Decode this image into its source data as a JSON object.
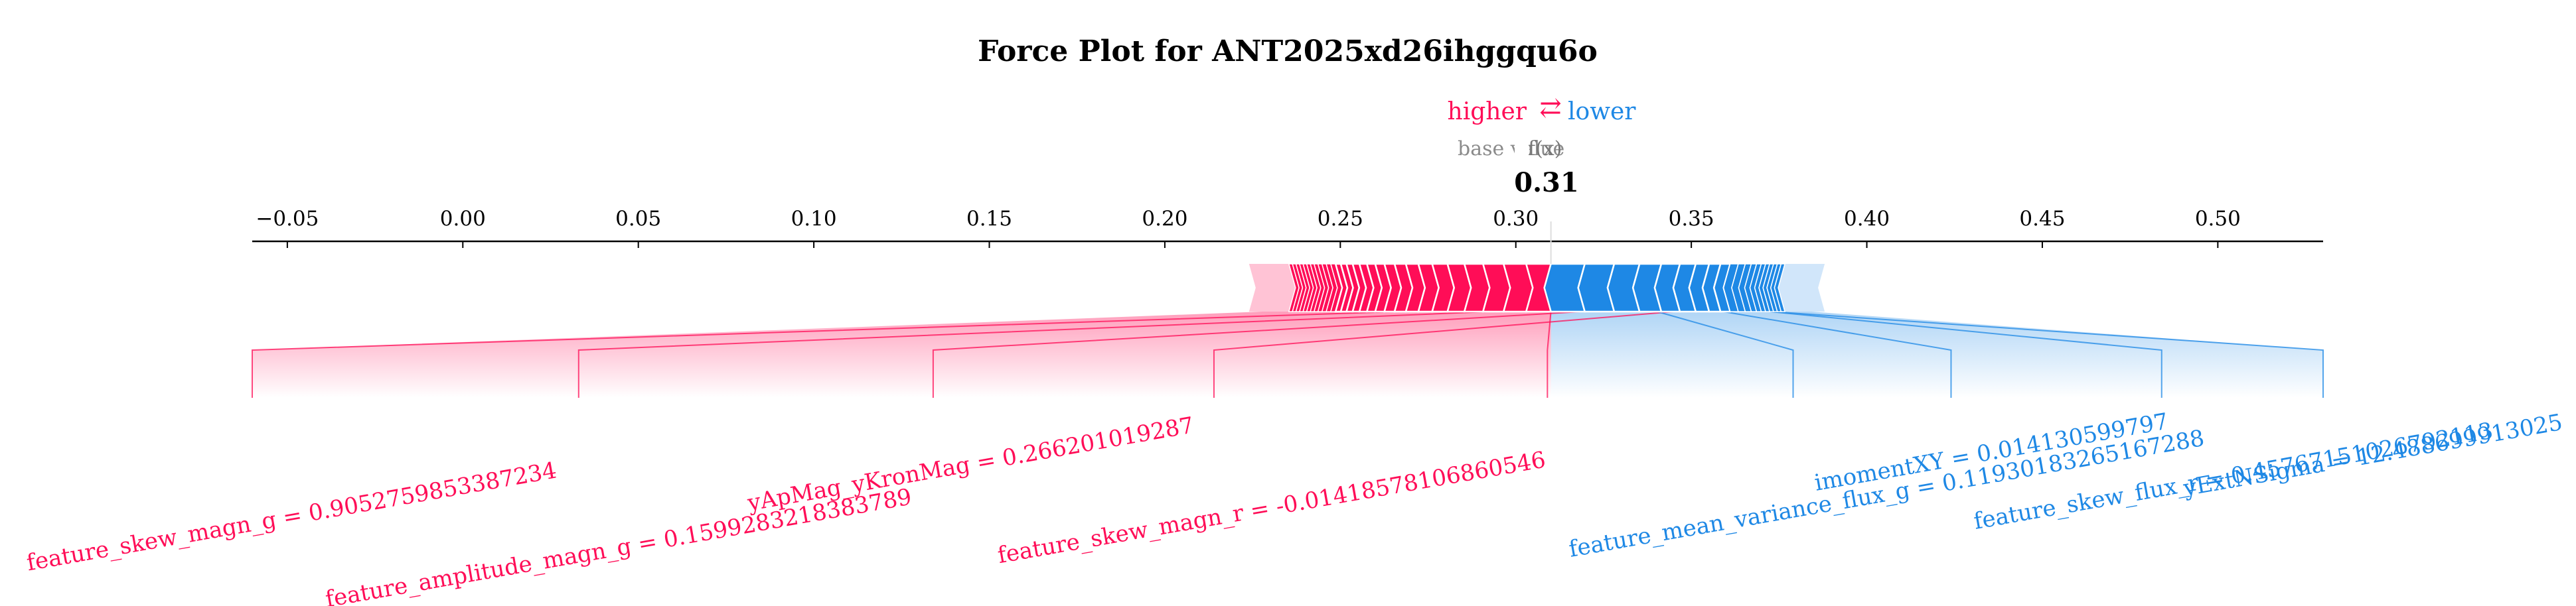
{
  "chart_data": {
    "type": "force",
    "title": "Force Plot for ANT2025xd26ihggqu6o",
    "legend": {
      "higher_label": "higher",
      "lower_label": "lower",
      "arrow_glyph": "⇄",
      "base_label": "base value",
      "fx_label": "f(x)"
    },
    "output_value": 0.31,
    "output_value_text": "0.31",
    "xlim": [
      -0.06,
      0.53
    ],
    "ticks": [
      -0.05,
      0.0,
      0.05,
      0.1,
      0.15,
      0.2,
      0.25,
      0.3,
      0.35,
      0.4,
      0.45,
      0.5
    ],
    "tick_labels": [
      "−0.05",
      "0.00",
      "0.05",
      "0.10",
      "0.15",
      "0.20",
      "0.25",
      "0.30",
      "0.35",
      "0.40",
      "0.45",
      "0.50"
    ],
    "higher_bar": {
      "start": 0.224,
      "end": 0.309,
      "segments": 29
    },
    "lower_bar": {
      "start": 0.309,
      "end": 0.388,
      "segments": 20
    },
    "higher_features": [
      {
        "label": "feature_skew_magn_g = 0.9052759853387234",
        "connector_x": -0.06
      },
      {
        "label": "feature_amplitude_magn_g = 0.1599283218383789",
        "connector_x": 0.033
      },
      {
        "label": "yApMag_yKronMag = 0.266201019287",
        "connector_x": 0.134
      },
      {
        "label": "feature_skew_magn_r = -0.01418578106860546",
        "connector_x": 0.214
      },
      {
        "label": "",
        "connector_x": 0.309
      }
    ],
    "lower_features": [
      {
        "label": "feature_mean_variance_flux_g = 0.11930183265167288",
        "connector_x": 0.379
      },
      {
        "label": "imomentXY = 0.014130599797",
        "connector_x": 0.424
      },
      {
        "label": "feature_skew_flux_r = 0.45767151026792113",
        "connector_x": 0.484
      },
      {
        "label": "yExtNSigma = 12.488699913025",
        "connector_x": 0.53
      }
    ],
    "colors": {
      "higher": "#ff0d57",
      "lower": "#1e88e5",
      "higher_light": "#ffc3d5",
      "lower_light": "#d1e6fa"
    }
  }
}
